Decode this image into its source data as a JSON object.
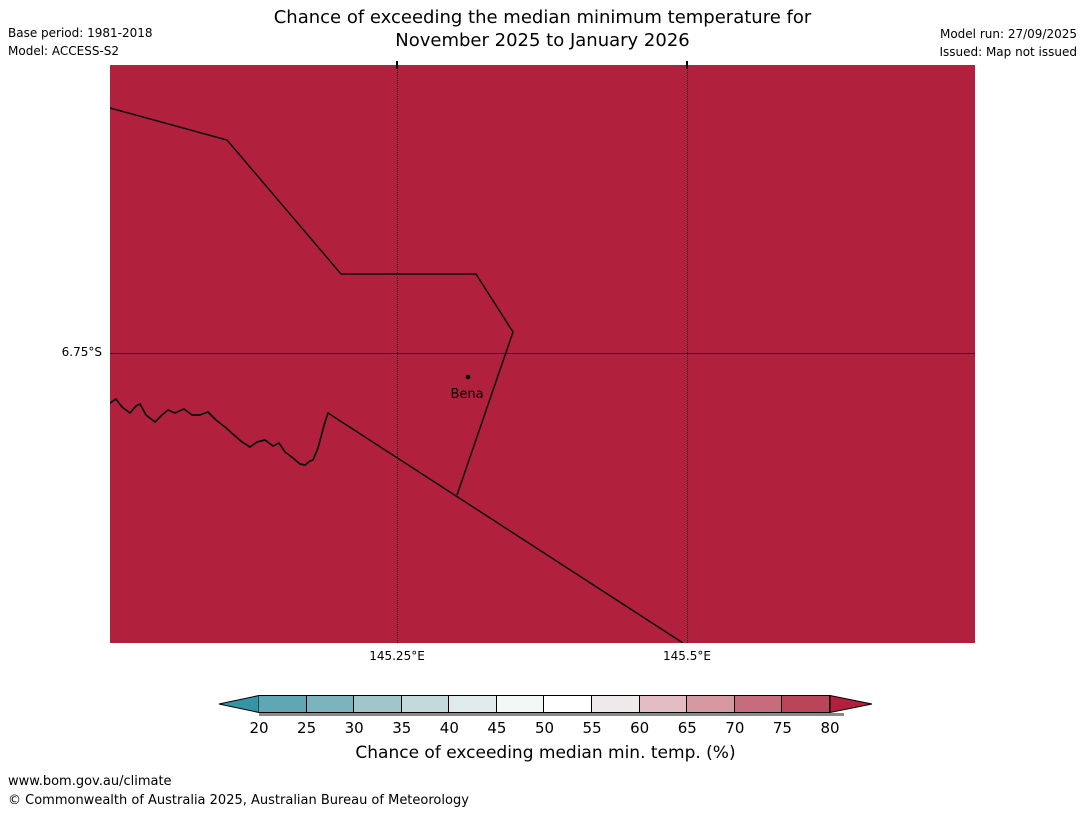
{
  "header": {
    "base_period": "Base period: 1981-2018",
    "model": "Model: ACCESS-S2",
    "title_line1": "Chance of exceeding the median minimum temperature for",
    "title_line2": "November 2025 to January 2026",
    "model_run": "Model run: 27/09/2025",
    "issued": "Issued: Map not issued"
  },
  "map": {
    "fill_color": "#b1213e",
    "line_color": "#0a0a0a",
    "y_tick_label": "6.75°S",
    "x_tick_labels": [
      "145.25°E",
      "145.5°E"
    ],
    "place": {
      "name": "Bena",
      "marker_cx": "358",
      "marker_cy": "312",
      "marker_r": "2.3"
    },
    "border_a": "0,43 117,75 231,209 366,209 403,267 347,430",
    "river": "0,338 6,334 12,342 20,348 26,341 30,339 36,350 45,357 52,350 58,345 65,348 74,344 82,350 90,350 98,347 106,355 115,362 124,370 132,377 140,382 147,377 155,375 163,381 169,378 175,387 183,393 190,399 195,400 200,396 203,395 208,383 212,368 215,357 218,348",
    "district_line": "218,348 573,578"
  },
  "colorbar": {
    "caption": "Chance of exceeding median min. temp. (%)",
    "tick_labels": [
      "20",
      "25",
      "30",
      "35",
      "40",
      "45",
      "50",
      "55",
      "60",
      "65",
      "70",
      "75",
      "80"
    ],
    "segment_colors": [
      "#5fa7b4",
      "#7bb4be",
      "#a0c6cb",
      "#c4d9db",
      "#dfeaea",
      "#f3f7f6",
      "#ffffff",
      "#edeae9",
      "#e3bdc3",
      "#d698a1",
      "#c76c7c",
      "#ba4458"
    ],
    "left_arrow_color": "#3794a5",
    "right_arrow_color": "#b1213e",
    "outline_color": "#000000"
  },
  "footer": {
    "url": "www.bom.gov.au/climate",
    "copyright": "© Commonwealth of Australia 2025, Australian Bureau of Meteorology"
  }
}
